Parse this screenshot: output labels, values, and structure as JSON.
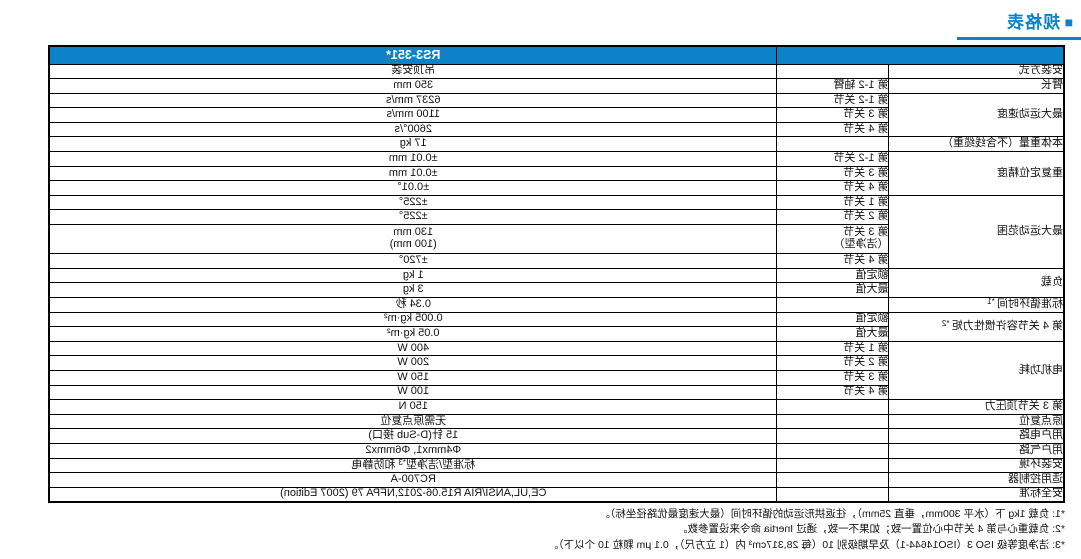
{
  "page": {
    "title_marker": "■",
    "title": "规格表"
  },
  "colors": {
    "header_blue": "#0c83c9",
    "row_tint_blue": "#d9e8f7",
    "title_blue": "#0c83c9",
    "border_black": "#000000",
    "header_text_white": "#ffffff"
  },
  "table": {
    "header_model": "RS3-351*",
    "groups": [
      {
        "label": "安装方式",
        "tint": false,
        "rows": [
          {
            "sub": "",
            "value": "吊顶安装"
          }
        ]
      },
      {
        "label": "臂长",
        "tint": true,
        "rows": [
          {
            "sub": "第 1-2 轴臂",
            "value": "350 mm"
          }
        ]
      },
      {
        "label": "最大运动速度",
        "tint": false,
        "rows": [
          {
            "sub": "第 1-2 关节",
            "value": "6237 mm/s"
          },
          {
            "sub": "第 3 关节",
            "value": "1100 mm/s"
          },
          {
            "sub": "第 4 关节",
            "value": "2600°/s"
          }
        ]
      },
      {
        "label": "本体重量（不含线缆重）",
        "tint": true,
        "rows": [
          {
            "sub": "",
            "value": "17 kg"
          }
        ]
      },
      {
        "label": "重复定位精度",
        "tint": false,
        "rows": [
          {
            "sub": "第 1-2 关节",
            "value": "±0.01 mm"
          },
          {
            "sub": "第 3 关节",
            "value": "±0.01 mm"
          },
          {
            "sub": "第 4 关节",
            "value": "±0.01°"
          }
        ]
      },
      {
        "label": "最大运动范围",
        "tint": true,
        "rows": [
          {
            "sub": "第 1 关节",
            "value": "±225°"
          },
          {
            "sub": "第 2 关节",
            "value": "±225°"
          },
          {
            "sub": "第 3 关节",
            "sub_line2": "（洁净型）",
            "value": "130 mm",
            "value_line2": "(100 mm)",
            "double": true
          },
          {
            "sub": "第 4 关节",
            "value": "±720°"
          }
        ]
      },
      {
        "label": "负载",
        "tint": false,
        "rows": [
          {
            "sub": "额定值",
            "value": "1 kg"
          },
          {
            "sub": "最大值",
            "value": "3 kg"
          }
        ]
      },
      {
        "label": "标准循环时间",
        "label_sup": "*1",
        "tint": true,
        "rows": [
          {
            "sub": "",
            "value": "0.34 秒"
          }
        ]
      },
      {
        "label": "第 4 关节容许惯性力矩",
        "label_sup": "*2",
        "tint": false,
        "rows": [
          {
            "sub": "额定值",
            "value": "0.005 kg·m²"
          },
          {
            "sub": "最大值",
            "value": "0.05 kg·m²"
          }
        ]
      },
      {
        "label": "电机功耗",
        "tint": true,
        "rows": [
          {
            "sub": "第 1 关节",
            "value": "400 W"
          },
          {
            "sub": "第 2 关节",
            "value": "200 W"
          },
          {
            "sub": "第 3 关节",
            "value": "150 W"
          },
          {
            "sub": "第 4 关节",
            "value": "100 W"
          }
        ]
      },
      {
        "label": "第 3 关节顶压力",
        "tint": false,
        "rows": [
          {
            "sub": "",
            "value": "150 N"
          }
        ]
      },
      {
        "label": "原点复位",
        "tint": true,
        "rows": [
          {
            "sub": "",
            "value": "无需原点复位"
          }
        ]
      },
      {
        "label": "用户电路",
        "tint": false,
        "rows": [
          {
            "sub": "",
            "value": "15 针(D-Sub 接口)"
          }
        ]
      },
      {
        "label": "用户气路",
        "tint": false,
        "rows": [
          {
            "sub": "",
            "value": "Φ4mmx1, Φ6mmx2"
          }
        ]
      },
      {
        "label": "安装环境",
        "tint": true,
        "rows": [
          {
            "sub": "",
            "value": "标准型/洁净型",
            "value_sup": "*3",
            "value_post": " 和防静电"
          }
        ]
      },
      {
        "label": "适用控制器",
        "tint": false,
        "rows": [
          {
            "sub": "",
            "value": "RC700-A"
          }
        ]
      },
      {
        "label": "安全标准",
        "tint": true,
        "rows": [
          {
            "sub": "",
            "value": "CE,UL,ANSI/RIA R15.06-2012,NFPA 79 (2007 Edition)"
          }
        ]
      }
    ]
  },
  "footnotes": [
    "*1: 负载 1kg 下（水平 300mm，垂直 25mm），往返拱形运动的循环时间（最大速度最优路径坐标）。",
    "*2: 负载重心与第 4 关节中心位置一致；如果不一致，通过 Inertia 命令来设置参数。",
    "*3: 洁净度等级 ISO 3（ISO14644-1）及早期级别 10（每 28,317cm³ 内（1 立方尺），0.1 μm 颗粒 10 个以下）。"
  ]
}
